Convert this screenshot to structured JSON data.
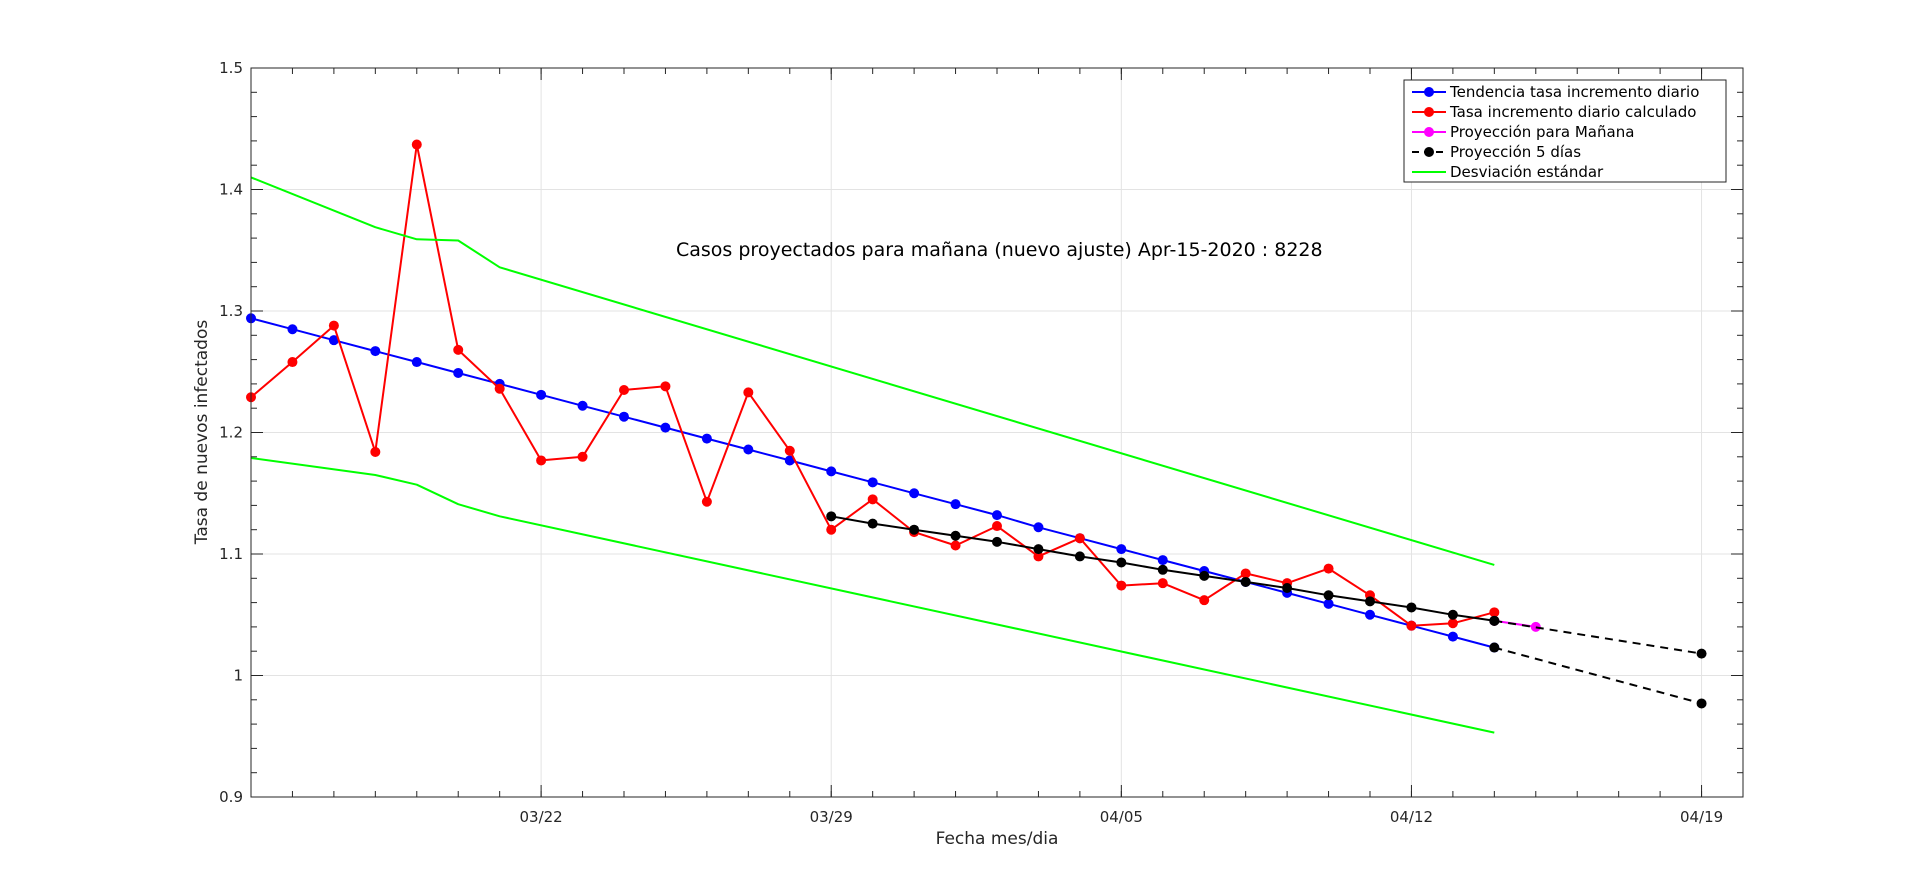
{
  "chart_data": {
    "type": "line",
    "title": "",
    "xlabel": "Fecha mes/dia",
    "ylabel": "Tasa de nuevos infectados",
    "annotation": "Casos proyectados para mañana (nuevo ajuste) Apr-15-2020 : 8228",
    "xlim": [
      "2020-03-15",
      "2020-04-20"
    ],
    "ylim": [
      0.9,
      1.5
    ],
    "x_ticks": [
      "2020-03-22",
      "2020-03-29",
      "2020-04-05",
      "2020-04-12",
      "2020-04-19"
    ],
    "x_tick_labels": [
      "03/22",
      "03/29",
      "04/05",
      "04/12",
      "04/19"
    ],
    "y_ticks": [
      0.9,
      1.0,
      1.1,
      1.2,
      1.3,
      1.4,
      1.5
    ],
    "y_tick_labels": [
      "0.9",
      "1",
      "1.1",
      "1.2",
      "1.3",
      "1.4",
      "1.5"
    ],
    "grid": true,
    "legend_position": "top-right",
    "series": [
      {
        "name": "Tendencia tasa incremento diario",
        "color": "#0000ff",
        "style": "solid",
        "marker": "circle",
        "x": [
          "2020-03-15",
          "2020-03-16",
          "2020-03-17",
          "2020-03-18",
          "2020-03-19",
          "2020-03-20",
          "2020-03-21",
          "2020-03-22",
          "2020-03-23",
          "2020-03-24",
          "2020-03-25",
          "2020-03-26",
          "2020-03-27",
          "2020-03-28",
          "2020-03-29",
          "2020-03-30",
          "2020-03-31",
          "2020-04-01",
          "2020-04-02",
          "2020-04-03",
          "2020-04-04",
          "2020-04-05",
          "2020-04-06",
          "2020-04-07",
          "2020-04-08",
          "2020-04-09",
          "2020-04-10",
          "2020-04-11",
          "2020-04-12",
          "2020-04-13",
          "2020-04-14"
        ],
        "y": [
          1.294,
          1.285,
          1.276,
          1.267,
          1.258,
          1.249,
          1.24,
          1.231,
          1.222,
          1.213,
          1.204,
          1.195,
          1.186,
          1.177,
          1.168,
          1.159,
          1.15,
          1.141,
          1.132,
          1.122,
          1.113,
          1.104,
          1.095,
          1.086,
          1.077,
          1.068,
          1.059,
          1.05,
          1.041,
          1.032,
          1.023
        ]
      },
      {
        "name": "Tasa incremento diario calculado",
        "color": "#ff0000",
        "style": "solid",
        "marker": "circle",
        "x": [
          "2020-03-15",
          "2020-03-16",
          "2020-03-17",
          "2020-03-18",
          "2020-03-19",
          "2020-03-20",
          "2020-03-21",
          "2020-03-22",
          "2020-03-23",
          "2020-03-24",
          "2020-03-25",
          "2020-03-26",
          "2020-03-27",
          "2020-03-28",
          "2020-03-29",
          "2020-03-30",
          "2020-03-31",
          "2020-04-01",
          "2020-04-02",
          "2020-04-03",
          "2020-04-04",
          "2020-04-05",
          "2020-04-06",
          "2020-04-07",
          "2020-04-08",
          "2020-04-09",
          "2020-04-10",
          "2020-04-11",
          "2020-04-12",
          "2020-04-13",
          "2020-04-14"
        ],
        "y": [
          1.229,
          1.258,
          1.288,
          1.184,
          1.437,
          1.268,
          1.236,
          1.177,
          1.18,
          1.235,
          1.238,
          1.143,
          1.233,
          1.185,
          1.12,
          1.145,
          1.118,
          1.107,
          1.123,
          1.098,
          1.113,
          1.074,
          1.076,
          1.062,
          1.084,
          1.076,
          1.088,
          1.066,
          1.041,
          1.043,
          1.052
        ]
      },
      {
        "name": "Proyección para Mañana",
        "color": "#ff00ff",
        "style": "solid",
        "marker": "circle",
        "x": [
          "2020-04-14",
          "2020-04-15"
        ],
        "y": [
          1.045,
          1.04
        ]
      },
      {
        "name": "Proyección 5 días",
        "color": "#000000",
        "style": "dashed",
        "marker": "circle",
        "legend_visible": true,
        "x": [
          "2020-04-14",
          "2020-04-19"
        ],
        "y": [
          1.023,
          0.977
        ]
      },
      {
        "name": "",
        "color": "#000000",
        "style": "dashed",
        "marker": "circle",
        "legend_visible": false,
        "x": [
          "2020-04-14",
          "2020-04-19"
        ],
        "y": [
          1.045,
          1.018
        ]
      },
      {
        "name": "",
        "color": "#000000",
        "style": "solid",
        "marker": "circle",
        "legend_visible": false,
        "x": [
          "2020-03-29",
          "2020-03-30",
          "2020-03-31",
          "2020-04-01",
          "2020-04-02",
          "2020-04-03",
          "2020-04-04",
          "2020-04-05",
          "2020-04-06",
          "2020-04-07",
          "2020-04-08",
          "2020-04-09",
          "2020-04-10",
          "2020-04-11",
          "2020-04-12",
          "2020-04-13",
          "2020-04-14"
        ],
        "y": [
          1.131,
          1.125,
          1.12,
          1.115,
          1.11,
          1.104,
          1.098,
          1.093,
          1.087,
          1.082,
          1.077,
          1.072,
          1.066,
          1.061,
          1.056,
          1.05,
          1.045
        ]
      },
      {
        "name": "Desviación estándar",
        "color": "#00ff00",
        "style": "solid",
        "marker": "none",
        "x": [
          "2020-03-15",
          "2020-03-18",
          "2020-03-19",
          "2020-03-20",
          "2020-03-21",
          "2020-04-14"
        ],
        "y": [
          1.41,
          1.369,
          1.359,
          1.358,
          1.336,
          1.091
        ]
      },
      {
        "name": "",
        "color": "#00ff00",
        "style": "solid",
        "marker": "none",
        "legend_visible": false,
        "x": [
          "2020-03-15",
          "2020-03-18",
          "2020-03-19",
          "2020-03-20",
          "2020-03-21",
          "2020-04-14"
        ],
        "y": [
          1.179,
          1.165,
          1.157,
          1.141,
          1.131,
          0.953
        ]
      }
    ],
    "legend": [
      {
        "label": "Tendencia tasa incremento diario",
        "color": "#0000ff",
        "style": "solid",
        "marker": "circle"
      },
      {
        "label": "Tasa incremento diario calculado",
        "color": "#ff0000",
        "style": "solid",
        "marker": "circle"
      },
      {
        "label": "Proyección para Mañana",
        "color": "#ff00ff",
        "style": "solid",
        "marker": "circle"
      },
      {
        "label": "Proyección 5 días",
        "color": "#000000",
        "style": "dashed",
        "marker": "circle"
      },
      {
        "label": "Desviación estándar",
        "color": "#00ff00",
        "style": "solid",
        "marker": "none"
      }
    ]
  }
}
